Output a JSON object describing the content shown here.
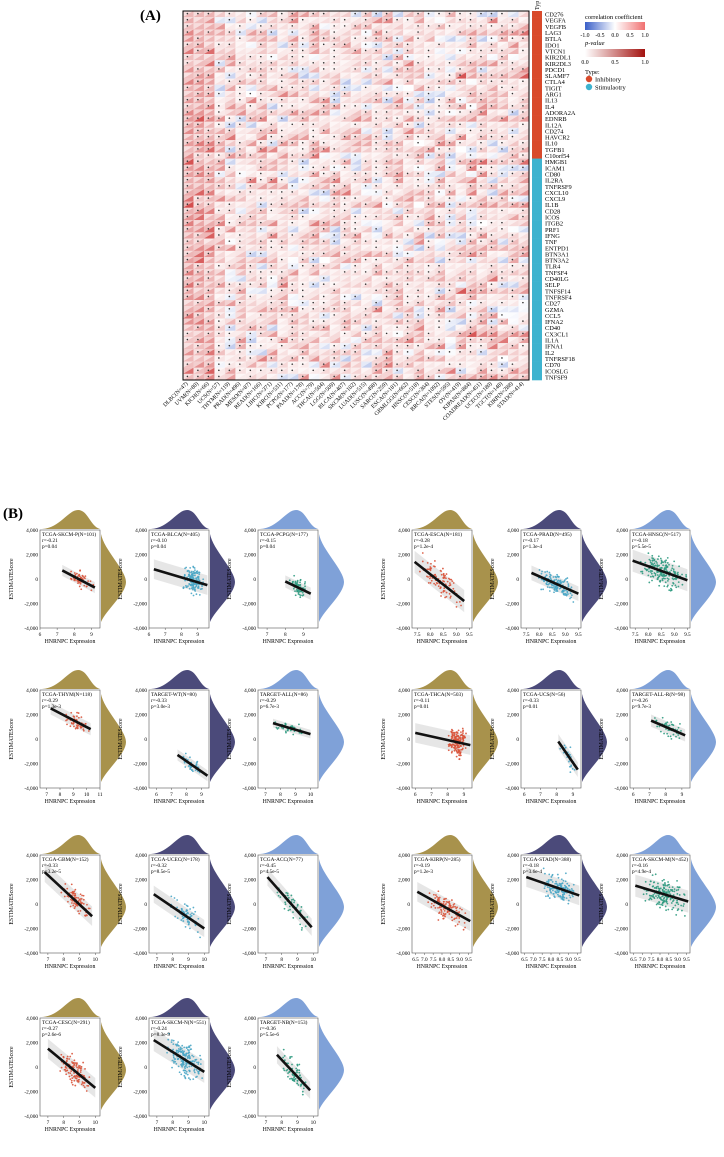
{
  "figure": {
    "panel_a_letter": "(A)",
    "panel_b_letter": "(B)"
  },
  "chart_data": [
    {
      "type": "heatmap",
      "panel": "(A)",
      "title": "",
      "type_column_header": "Typ",
      "rows": [
        "CD276",
        "VEGFA",
        "VEGFB",
        "LAG3",
        "BTLA",
        "IDO1",
        "VTCN1",
        "KIR2DL1",
        "KIR2DL3",
        "PDCD1",
        "SLAMF7",
        "CTLA4",
        "TIGIT",
        "ARG1",
        "IL13",
        "IL4",
        "ADORA2A",
        "EDNRB",
        "IL12A",
        "CD274",
        "HAVCR2",
        "IL10",
        "TGFB1",
        "C10orf54",
        "HMGB1",
        "ICAM1",
        "CD80",
        "IL2RA",
        "TNFRSF9",
        "CXCL10",
        "CXCL9",
        "IL1B",
        "CD28",
        "ICOS",
        "ITGB2",
        "PRF1",
        "IFNG",
        "TNF",
        "ENTPD1",
        "BTN3A1",
        "BTN3A2",
        "TLR4",
        "TNFSF4",
        "CD40LG",
        "SELP",
        "TNFSF14",
        "TNFRSF4",
        "CD27",
        "GZMA",
        "CCL5",
        "IFNA2",
        "CD40",
        "CX3CL1",
        "IL1A",
        "IFNA1",
        "IL2",
        "TNFRSF18",
        "CD70",
        "ICOSLG",
        "TNFSF9"
      ],
      "row_types": [
        "Inhibitory",
        "Inhibitory",
        "Inhibitory",
        "Inhibitory",
        "Inhibitory",
        "Inhibitory",
        "Inhibitory",
        "Inhibitory",
        "Inhibitory",
        "Inhibitory",
        "Inhibitory",
        "Inhibitory",
        "Inhibitory",
        "Inhibitory",
        "Inhibitory",
        "Inhibitory",
        "Inhibitory",
        "Inhibitory",
        "Inhibitory",
        "Inhibitory",
        "Inhibitory",
        "Inhibitory",
        "Inhibitory",
        "Inhibitory",
        "Stimulatory",
        "Stimulatory",
        "Stimulatory",
        "Stimulatory",
        "Stimulatory",
        "Stimulatory",
        "Stimulatory",
        "Stimulatory",
        "Stimulatory",
        "Stimulatory",
        "Stimulatory",
        "Stimulatory",
        "Stimulatory",
        "Stimulatory",
        "Stimulatory",
        "Stimulatory",
        "Stimulatory",
        "Stimulatory",
        "Stimulatory",
        "Stimulatory",
        "Stimulatory",
        "Stimulatory",
        "Stimulatory",
        "Stimulatory",
        "Stimulatory",
        "Stimulatory",
        "Stimulatory",
        "Stimulatory",
        "Stimulatory",
        "Stimulatory",
        "Stimulatory",
        "Stimulatory",
        "Stimulatory",
        "Stimulatory",
        "Stimulatory",
        "Stimulatory"
      ],
      "columns": [
        "DLBC(N=47)",
        "UVM(N=80)",
        "KICH(N=66)",
        "UCS(N=57)",
        "THYM(N=119)",
        "PRAD(N=496)",
        "MESO(N=87)",
        "READ(N=166)",
        "LIHC(N=371)",
        "KIRC(N=531)",
        "PCPG(N=177)",
        "PAAD(N=178)",
        "ACC(N=79)",
        "THCA(N=504)",
        "LGG(N=509)",
        "BLCA(N=407)",
        "SKCM(N=102)",
        "LUAD(N=515)",
        "LUSC(N=498)",
        "SARC(N=259)",
        "ESCA(N=181)",
        "GBMLGG(N=662)",
        "HNSC(N=518)",
        "CESC(N=304)",
        "BRCA(N=1092)",
        "STES(N=595)",
        "OV(N=419)",
        "KIPAN(N=884)",
        "COADREAD(N=451)",
        "UCEC(N=180)",
        "TGCT(N=148)",
        "KIRP(N=288)",
        "STAD(N=414)"
      ],
      "legend": {
        "corr_label": "correlation coefficient",
        "corr_ticks": [
          "-1.0",
          "-0.5",
          "0.0",
          "0.5",
          "1.0"
        ],
        "p_label": "p-value",
        "p_ticks": [
          "0.0",
          "0.5",
          "1.0"
        ],
        "type_label": "Type:",
        "type_inhibitory": "Inhibitory",
        "type_stimulatory": "Stimulaotry",
        "colors": {
          "negative": "#3a5fc8",
          "zero": "#ffffff",
          "positive": "#c81a1a",
          "inhibitory": "#d94a2b",
          "stimulatory": "#3eb3cf"
        }
      }
    },
    {
      "type": "scatter",
      "panel": "(B)",
      "xlabel": "HNRNPC Expression",
      "ylabel": "ESTIMATEScore",
      "y_ticks": [
        "4,000",
        "2,000",
        "0",
        "-2,000",
        "-4,000"
      ],
      "palette": {
        "gold": "#a8924c",
        "navy": "#4b4a7a",
        "blue": "#7fa1d8",
        "red": "#d9533a",
        "teal": "#4aa6c5",
        "green": "#2d9a80"
      },
      "plots": [
        {
          "label": "TCGA-SKCM-P(N=101)",
          "r": "r=-0.21",
          "p": "p=0.04",
          "xticks": [
            "6",
            "7",
            "8",
            "9"
          ],
          "xlim": [
            6,
            9.5
          ],
          "top": "gold",
          "right": "gold",
          "dot": "red",
          "n": 60,
          "x_range": [
            7.3,
            9.2
          ],
          "line": [
            [
              7.3,
              700
            ],
            [
              9.2,
              -700
            ]
          ],
          "band": 450
        },
        {
          "label": "TCGA-BLCA(N=405)",
          "r": "r=-0.10",
          "p": "p=0.04",
          "xticks": [
            "6",
            "7",
            "8",
            "9"
          ],
          "xlim": [
            6,
            9.7
          ],
          "top": "navy",
          "right": "navy",
          "dot": "teal",
          "n": 150,
          "x_range": [
            8.0,
            9.4
          ],
          "line": [
            [
              6.3,
              800
            ],
            [
              9.6,
              -500
            ]
          ],
          "band": 800
        },
        {
          "label": "TCGA-PCPG(N=177)",
          "r": "r=-0.15",
          "p": "p=0.04",
          "xticks": [
            "7",
            "8",
            "9"
          ],
          "xlim": [
            6.5,
            9.8
          ],
          "top": "blue",
          "right": "blue",
          "dot": "green",
          "n": 70,
          "x_range": [
            8.1,
            9.3
          ],
          "line": [
            [
              8.0,
              -200
            ],
            [
              9.4,
              -1200
            ]
          ],
          "band": 500
        },
        {
          "label": "TCGA-ESCA(N=181)",
          "r": "r=-0.28",
          "p": "p=1.2e-4",
          "xticks": [
            "7.5",
            "8.0",
            "8.5",
            "9.0",
            "9.5"
          ],
          "xlim": [
            7.3,
            9.6
          ],
          "top": "gold",
          "right": "gold",
          "dot": "red",
          "n": 100,
          "x_range": [
            7.5,
            9.3
          ],
          "line": [
            [
              7.4,
              1400
            ],
            [
              9.3,
              -1800
            ]
          ],
          "band": 900
        },
        {
          "label": "TCGA-PRAD(N=495)",
          "r": "r=-0.17",
          "p": "p=1.3e-4",
          "xticks": [
            "7.5",
            "8.0",
            "8.5",
            "9.0",
            "9.5"
          ],
          "xlim": [
            7.3,
            9.6
          ],
          "top": "navy",
          "right": "navy",
          "dot": "teal",
          "n": 170,
          "x_range": [
            7.9,
            9.4
          ],
          "line": [
            [
              7.7,
              500
            ],
            [
              9.5,
              -1200
            ]
          ],
          "band": 600
        },
        {
          "label": "TCGA-HNSC(N=517)",
          "r": "r=-0.18",
          "p": "p=5.5e-5",
          "xticks": [
            "7.5",
            "8.0",
            "8.5",
            "9.0",
            "9.5"
          ],
          "xlim": [
            7.3,
            9.6
          ],
          "top": "blue",
          "right": "blue",
          "dot": "green",
          "n": 180,
          "x_range": [
            7.5,
            9.5
          ],
          "line": [
            [
              7.4,
              1500
            ],
            [
              9.5,
              -100
            ]
          ],
          "band": 900
        },
        {
          "label": "TCGA-THYM(N=118)",
          "r": "r=-0.29",
          "p": "p=1.3e-3",
          "xticks": [
            "7",
            "8",
            "9",
            "10",
            "11"
          ],
          "xlim": [
            6.5,
            11
          ],
          "top": "gold",
          "right": "gold",
          "dot": "red",
          "n": 60,
          "x_range": [
            8.2,
            10.2
          ],
          "line": [
            [
              7.3,
              2500
            ],
            [
              10.3,
              800
            ]
          ],
          "band": 500
        },
        {
          "label": "TARGET-WT(N=80)",
          "r": "r=-0.33",
          "p": "p=3.0e-3",
          "xticks": [
            "6",
            "7",
            "8",
            "9"
          ],
          "xlim": [
            5.5,
            9.5
          ],
          "top": "navy",
          "right": "navy",
          "dot": "teal",
          "n": 45,
          "x_range": [
            7.5,
            9.3
          ],
          "line": [
            [
              7.4,
              -1300
            ],
            [
              9.4,
              -3000
            ]
          ],
          "band": 450
        },
        {
          "label": "TARGET-ALL(N=86)",
          "r": "r=-0.29",
          "p": "p=6.7e-3",
          "xticks": [
            "7",
            "8",
            "9",
            "10"
          ],
          "xlim": [
            6.5,
            10.5
          ],
          "top": "blue",
          "right": "blue",
          "dot": "green",
          "n": 45,
          "x_range": [
            7.6,
            9.8
          ],
          "line": [
            [
              7.5,
              1300
            ],
            [
              10,
              400
            ]
          ],
          "band": 350
        },
        {
          "label": "TCGA-THCA(N=503)",
          "r": "r=-0.11",
          "p": "p=0.01",
          "xticks": [
            "6",
            "7",
            "8",
            "9"
          ],
          "xlim": [
            5.8,
            9.5
          ],
          "top": "gold",
          "right": "gold",
          "dot": "red",
          "n": 170,
          "x_range": [
            8.0,
            9.2
          ],
          "line": [
            [
              6.0,
              500
            ],
            [
              9.4,
              -500
            ]
          ],
          "band": 800
        },
        {
          "label": "TCGA-UCS(N=56)",
          "r": "r=-0.33",
          "p": "p=0.01",
          "xticks": [
            "6",
            "7",
            "8",
            "9"
          ],
          "xlim": [
            5.8,
            9.5
          ],
          "top": "navy",
          "right": "navy",
          "dot": "teal",
          "n": 30,
          "x_range": [
            8.2,
            9.3
          ],
          "line": [
            [
              8.1,
              -200
            ],
            [
              9.3,
              -2500
            ]
          ],
          "band": 600
        },
        {
          "label": "TARGET-ALL-R(N=98)",
          "r": "r=-0.26",
          "p": "p=9.7e-3",
          "xticks": [
            "6",
            "7",
            "8",
            "9"
          ],
          "xlim": [
            5.8,
            9.5
          ],
          "top": "blue",
          "right": "blue",
          "dot": "green",
          "n": 50,
          "x_range": [
            7.2,
            9.1
          ],
          "line": [
            [
              7.1,
              1500
            ],
            [
              9.2,
              300
            ]
          ],
          "band": 500
        },
        {
          "label": "TCGA-GBM(N=152)",
          "r": "r=-0.33",
          "p": "p=3.2e-5",
          "xticks": [
            "7",
            "8",
            "9",
            "10"
          ],
          "xlim": [
            6.5,
            10.3
          ],
          "top": "gold",
          "right": "gold",
          "dot": "red",
          "n": 80,
          "x_range": [
            7.8,
            9.8
          ],
          "line": [
            [
              6.8,
              2600
            ],
            [
              9.8,
              -1000
            ]
          ],
          "band": 800
        },
        {
          "label": "TCGA-UCEC(N=178)",
          "r": "r=-0.32",
          "p": "p=8.5e-5",
          "xticks": [
            "7",
            "8",
            "9",
            "10"
          ],
          "xlim": [
            6.5,
            10.3
          ],
          "top": "navy",
          "right": "navy",
          "dot": "teal",
          "n": 80,
          "x_range": [
            7.8,
            9.9
          ],
          "line": [
            [
              6.8,
              800
            ],
            [
              10,
              -2000
            ]
          ],
          "band": 700
        },
        {
          "label": "TCGA-ACC(N=77)",
          "r": "r=-0.45",
          "p": "p=4.5e-5",
          "xticks": [
            "7",
            "8",
            "9",
            "10"
          ],
          "xlim": [
            6.5,
            10.3
          ],
          "top": "blue",
          "right": "blue",
          "dot": "green",
          "n": 45,
          "x_range": [
            7.6,
            9.9
          ],
          "line": [
            [
              7.1,
              2200
            ],
            [
              9.9,
              -1900
            ]
          ],
          "band": 700
        },
        {
          "label": "TCGA-KIRP(N=285)",
          "r": "r=-0.19",
          "p": "p=1.2e-3",
          "xticks": [
            "6.5",
            "7.0",
            "7.5",
            "8.0",
            "8.5",
            "9.0",
            "9.5"
          ],
          "xlim": [
            6.3,
            9.7
          ],
          "top": "gold",
          "right": "gold",
          "dot": "red",
          "n": 120,
          "x_range": [
            7.0,
            9.4
          ],
          "line": [
            [
              6.6,
              1000
            ],
            [
              9.6,
              -1400
            ]
          ],
          "band": 800
        },
        {
          "label": "TCGA-STAD(N=388)",
          "r": "r=-0.18",
          "p": "p=3.6e-4",
          "xticks": [
            "6.5",
            "7.0",
            "7.5",
            "8.0",
            "8.5",
            "9.0",
            "9.5"
          ],
          "xlim": [
            6.3,
            9.7
          ],
          "top": "navy",
          "right": "navy",
          "dot": "teal",
          "n": 150,
          "x_range": [
            7.5,
            9.4
          ],
          "line": [
            [
              6.6,
              2200
            ],
            [
              9.6,
              700
            ]
          ],
          "band": 800
        },
        {
          "label": "TCGA-SKCM-M(N=452)",
          "r": "r=-0.16",
          "p": "p=4.9e-4",
          "xticks": [
            "6.5",
            "7.0",
            "7.5",
            "8.0",
            "8.5",
            "9.0",
            "9.5"
          ],
          "xlim": [
            6.3,
            9.7
          ],
          "top": "blue",
          "right": "blue",
          "dot": "green",
          "n": 180,
          "x_range": [
            7.0,
            9.5
          ],
          "line": [
            [
              6.6,
              1500
            ],
            [
              9.6,
              200
            ]
          ],
          "band": 900
        },
        {
          "label": "TCGA-CESC(N=291)",
          "r": "r=-0.27",
          "p": "p=2.6e-6",
          "xticks": [
            "7",
            "8",
            "9",
            "10"
          ],
          "xlim": [
            6.5,
            10.3
          ],
          "top": "gold",
          "right": "gold",
          "dot": "red",
          "n": 120,
          "x_range": [
            7.7,
            9.8
          ],
          "line": [
            [
              7.0,
              1500
            ],
            [
              10,
              -1700
            ]
          ],
          "band": 800
        },
        {
          "label": "TCGA-SKCM-N(N=551)",
          "r": "r=-0.24",
          "p": "p=8.3e-9",
          "xticks": [
            "7",
            "8",
            "9",
            "10"
          ],
          "xlim": [
            6.5,
            10.3
          ],
          "top": "navy",
          "right": "navy",
          "dot": "teal",
          "n": 190,
          "x_range": [
            7.5,
            9.9
          ],
          "line": [
            [
              6.8,
              2200
            ],
            [
              10,
              -400
            ]
          ],
          "band": 900
        },
        {
          "label": "TARGET-NB(N=153)",
          "r": "r=-0.36",
          "p": "p=5.5e-6",
          "xticks": [
            "7",
            "8",
            "9",
            "10"
          ],
          "xlim": [
            6.5,
            10.3
          ],
          "top": "blue",
          "right": "blue",
          "dot": "green",
          "n": 70,
          "x_range": [
            7.9,
            9.8
          ],
          "line": [
            [
              7.7,
              1000
            ],
            [
              9.8,
              -1900
            ]
          ],
          "band": 700
        }
      ]
    }
  ]
}
